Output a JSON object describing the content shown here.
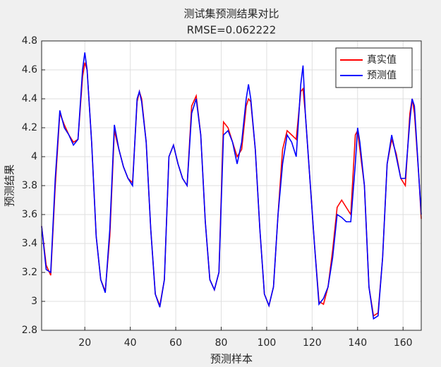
{
  "chart_data": {
    "type": "line",
    "title": "测试集预测结果对比",
    "subtitle": "RMSE=0.062222",
    "x_label": "预测样本",
    "y_label": "预测结果",
    "x": [
      1,
      3,
      5,
      7,
      9,
      11,
      13,
      15,
      17,
      19,
      20,
      21,
      23,
      25,
      27,
      29,
      31,
      33,
      35,
      37,
      39,
      41,
      43,
      44,
      45,
      47,
      49,
      51,
      53,
      55,
      57,
      59,
      61,
      63,
      65,
      67,
      69,
      71,
      73,
      75,
      77,
      79,
      81,
      83,
      85,
      87,
      89,
      91,
      92,
      93,
      95,
      97,
      99,
      101,
      103,
      105,
      107,
      109,
      111,
      113,
      115,
      116,
      117,
      119,
      121,
      123,
      125,
      127,
      129,
      131,
      133,
      135,
      137,
      139,
      140,
      141,
      143,
      145,
      147,
      149,
      151,
      153,
      155,
      157,
      159,
      161,
      163,
      164,
      165,
      167,
      168
    ],
    "series": [
      {
        "name": "真实值",
        "color": "#ff0000",
        "values": [
          3.52,
          3.25,
          3.18,
          3.8,
          4.3,
          4.22,
          4.15,
          4.1,
          4.12,
          4.55,
          4.65,
          4.6,
          4.1,
          3.45,
          3.15,
          3.07,
          3.45,
          4.18,
          4.05,
          3.93,
          3.85,
          3.82,
          4.38,
          4.45,
          4.4,
          4.1,
          3.5,
          3.05,
          2.97,
          3.15,
          4.0,
          4.08,
          3.95,
          3.85,
          3.8,
          4.35,
          4.42,
          4.15,
          3.55,
          3.15,
          3.08,
          3.2,
          4.24,
          4.2,
          4.1,
          4.0,
          4.05,
          4.35,
          4.4,
          4.38,
          4.05,
          3.5,
          3.05,
          2.97,
          3.1,
          3.6,
          4.05,
          4.18,
          4.15,
          4.12,
          4.45,
          4.47,
          4.3,
          3.85,
          3.4,
          3.0,
          2.98,
          3.1,
          3.35,
          3.65,
          3.7,
          3.65,
          3.6,
          4.15,
          4.18,
          4.05,
          3.8,
          3.1,
          2.9,
          2.92,
          3.3,
          3.95,
          4.12,
          4.02,
          3.85,
          3.8,
          4.3,
          4.4,
          4.3,
          3.85,
          3.57
        ]
      },
      {
        "name": "预测值",
        "color": "#0000ff",
        "values": [
          3.52,
          3.22,
          3.2,
          3.85,
          4.32,
          4.2,
          4.15,
          4.08,
          4.12,
          4.6,
          4.72,
          4.6,
          4.1,
          3.45,
          3.15,
          3.06,
          3.5,
          4.22,
          4.05,
          3.93,
          3.85,
          3.8,
          4.4,
          4.45,
          4.38,
          4.1,
          3.5,
          3.05,
          2.96,
          3.15,
          4.0,
          4.08,
          3.95,
          3.85,
          3.8,
          4.3,
          4.4,
          4.15,
          3.55,
          3.15,
          3.08,
          3.2,
          4.15,
          4.18,
          4.1,
          3.95,
          4.1,
          4.4,
          4.5,
          4.4,
          4.05,
          3.5,
          3.05,
          2.97,
          3.1,
          3.6,
          3.95,
          4.15,
          4.1,
          4.0,
          4.5,
          4.63,
          4.3,
          3.85,
          3.4,
          2.98,
          3.02,
          3.1,
          3.3,
          3.6,
          3.58,
          3.55,
          3.55,
          3.95,
          4.2,
          4.1,
          3.8,
          3.1,
          2.88,
          2.9,
          3.3,
          3.95,
          4.15,
          4.0,
          3.85,
          3.85,
          4.25,
          4.4,
          4.35,
          3.85,
          3.6
        ]
      }
    ],
    "xlim": [
      1,
      168
    ],
    "xticks": [
      20,
      40,
      60,
      80,
      100,
      120,
      140,
      160
    ],
    "ylim": [
      2.8,
      4.8
    ],
    "yticks": [
      2.8,
      3,
      3.2,
      3.4,
      3.6,
      3.8,
      4,
      4.2,
      4.4,
      4.6,
      4.8
    ],
    "grid": true,
    "legend": "northeast"
  }
}
